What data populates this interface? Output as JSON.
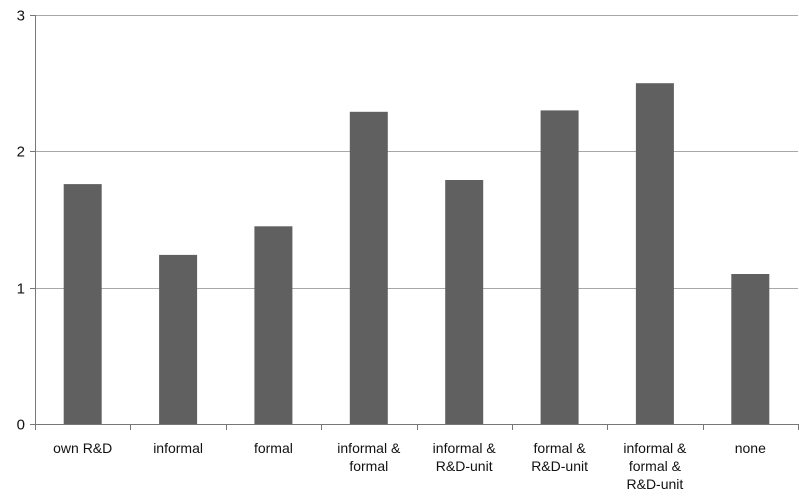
{
  "chart_data": {
    "type": "bar",
    "categories": [
      [
        "own R&D"
      ],
      [
        "informal"
      ],
      [
        "formal"
      ],
      [
        "informal &",
        "formal"
      ],
      [
        "informal &",
        "R&D-unit"
      ],
      [
        "formal &",
        "R&D-unit"
      ],
      [
        "informal &",
        "formal &",
        "R&D-unit"
      ],
      [
        "none"
      ]
    ],
    "values": [
      1.76,
      1.24,
      1.45,
      2.29,
      1.79,
      2.3,
      2.5,
      1.1
    ],
    "ylim": [
      0,
      3
    ],
    "yticks": [
      0,
      1,
      2,
      3
    ],
    "grid": true,
    "title": "",
    "xlabel": "",
    "ylabel": "",
    "colors": {
      "bar": "#606060",
      "grid": "#a8a8a8",
      "axis": "#777777",
      "text": "#111111"
    }
  }
}
